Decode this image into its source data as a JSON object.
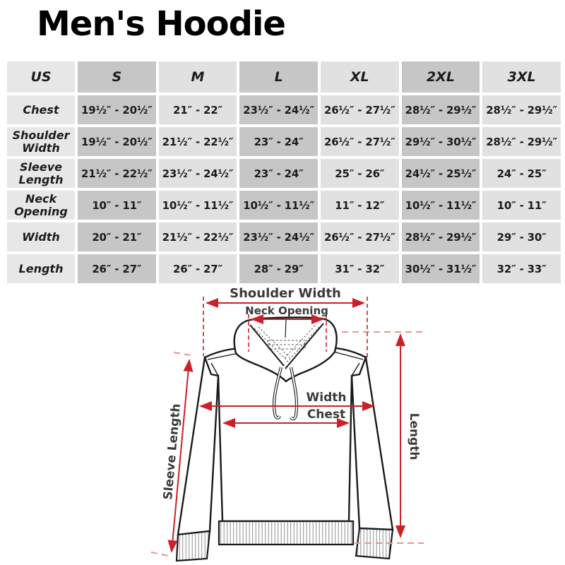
{
  "title": "Men's Hoodie",
  "size_table": {
    "columns": [
      "US",
      "S",
      "M",
      "L",
      "XL",
      "2XL",
      "3XL"
    ],
    "rows": [
      {
        "label": "Chest",
        "cells": [
          "19½″ - 20½″",
          "21″ - 22″",
          "23½″ - 24½″",
          "26½″ - 27½″",
          "28½″ - 29½″",
          "28½″ - 29½″"
        ]
      },
      {
        "label": "Shoulder Width",
        "cells": [
          "19½″ - 20½″",
          "21½″ - 22½″",
          "23″ - 24″",
          "26½″ - 27½″",
          "29½″ - 30½″",
          "28½″ - 29½″"
        ]
      },
      {
        "label": "Sleeve Length",
        "cells": [
          "21½″ - 22½″",
          "23½″ - 24½″",
          "23″ - 24″",
          "25″ - 26″",
          "24½″ - 25½″",
          "24″ - 25″"
        ]
      },
      {
        "label": "Neck Opening",
        "cells": [
          "10″ - 11″",
          "10½″ - 11½″",
          "10½″ - 11½″",
          "11″ - 12″",
          "10½″ - 11½″",
          "10″ - 11″"
        ]
      },
      {
        "label": "Width",
        "cells": [
          "20″ - 21″",
          "21½″ - 22½″",
          "23½″ - 24½″",
          "26½″ - 27½″",
          "28½″ - 29½″",
          "29″ - 30″"
        ]
      },
      {
        "label": "Length",
        "cells": [
          "26″ - 27″",
          "26″ - 27″",
          "28″ - 29″",
          "31″ - 32″",
          "30½″ - 31½″",
          "32″ - 33″"
        ]
      }
    ]
  },
  "diagram": {
    "labels": {
      "shoulder_width": "Shoulder Width",
      "neck_opening": "Neck Opening",
      "width": "Width",
      "chest": "Chest",
      "length": "Length",
      "sleeve_length": "Sleeve Length"
    }
  },
  "colors": {
    "table_light_cell": "#e1e1e1",
    "table_dark_cell": "#c6c6c6",
    "table_label_cell": "#e7e7e7",
    "arrow_red": "#cc2027",
    "guide_pink": "#e59595",
    "diagram_label_gray": "#3a3a3a",
    "drawing_line": "#1a1a1a"
  }
}
